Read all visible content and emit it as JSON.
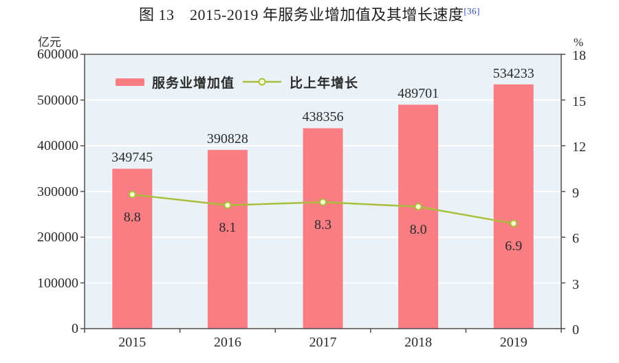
{
  "title": {
    "text": "图 13　2015-2019 年服务业增加值及其增长速度",
    "footnote": "[36]"
  },
  "chart_data": {
    "type": "bar",
    "subtype": "bar+line combo, dual axis",
    "title": "图 13 2015-2019 年服务业增加值及其增长速度",
    "categories": [
      "2015",
      "2016",
      "2017",
      "2018",
      "2019"
    ],
    "series": [
      {
        "name": "服务业增加值",
        "type": "bar",
        "axis": "left",
        "values": [
          349745,
          390828,
          438356,
          489701,
          534233
        ]
      },
      {
        "name": "比上年增长",
        "type": "line",
        "axis": "right",
        "values": [
          8.8,
          8.1,
          8.3,
          8.0,
          6.9
        ]
      }
    ],
    "left_axis": {
      "unit": "亿元",
      "min": 0,
      "max": 600000,
      "step": 100000,
      "ticks": [
        0,
        100000,
        200000,
        300000,
        400000,
        500000,
        600000
      ]
    },
    "right_axis": {
      "unit": "%",
      "min": 0,
      "max": 18,
      "step": 3,
      "ticks": [
        0,
        3,
        6,
        9,
        12,
        15,
        18
      ]
    },
    "grid": "horizontal white gridlines on",
    "legend_position": "inside top-left",
    "colors": {
      "bar": "#FA7D83",
      "line": "#A9BF3B",
      "marker_fill": "#FCFDD3",
      "plot_bg": "#EBF2F7",
      "gridline": "#FFFFFF",
      "axis": "#4d4d4d",
      "text": "#2b2b2b",
      "footnote_blue": "#2948B8"
    }
  }
}
